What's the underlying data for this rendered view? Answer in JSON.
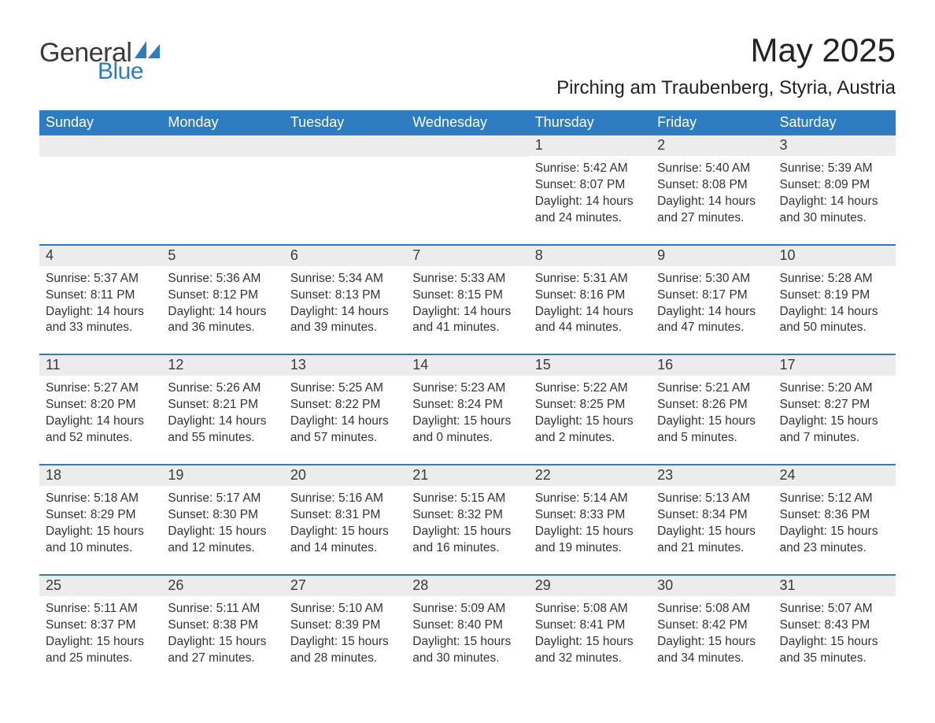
{
  "logo": {
    "text1": "General",
    "text2": "Blue",
    "accent_color": "#2d7bc0"
  },
  "title": "May 2025",
  "location": "Pirching am Traubenberg, Styria, Austria",
  "colors": {
    "header_bg": "#2d7bc0",
    "header_fg": "#ffffff",
    "daynum_bg": "#ececec",
    "text": "#333333",
    "rule": "#2d7bc0",
    "page_bg": "#ffffff"
  },
  "days_of_week": [
    "Sunday",
    "Monday",
    "Tuesday",
    "Wednesday",
    "Thursday",
    "Friday",
    "Saturday"
  ],
  "weeks": [
    [
      null,
      null,
      null,
      null,
      {
        "n": "1",
        "sunrise": "5:42 AM",
        "sunset": "8:07 PM",
        "dl": "14 hours and 24 minutes."
      },
      {
        "n": "2",
        "sunrise": "5:40 AM",
        "sunset": "8:08 PM",
        "dl": "14 hours and 27 minutes."
      },
      {
        "n": "3",
        "sunrise": "5:39 AM",
        "sunset": "8:09 PM",
        "dl": "14 hours and 30 minutes."
      }
    ],
    [
      {
        "n": "4",
        "sunrise": "5:37 AM",
        "sunset": "8:11 PM",
        "dl": "14 hours and 33 minutes."
      },
      {
        "n": "5",
        "sunrise": "5:36 AM",
        "sunset": "8:12 PM",
        "dl": "14 hours and 36 minutes."
      },
      {
        "n": "6",
        "sunrise": "5:34 AM",
        "sunset": "8:13 PM",
        "dl": "14 hours and 39 minutes."
      },
      {
        "n": "7",
        "sunrise": "5:33 AM",
        "sunset": "8:15 PM",
        "dl": "14 hours and 41 minutes."
      },
      {
        "n": "8",
        "sunrise": "5:31 AM",
        "sunset": "8:16 PM",
        "dl": "14 hours and 44 minutes."
      },
      {
        "n": "9",
        "sunrise": "5:30 AM",
        "sunset": "8:17 PM",
        "dl": "14 hours and 47 minutes."
      },
      {
        "n": "10",
        "sunrise": "5:28 AM",
        "sunset": "8:19 PM",
        "dl": "14 hours and 50 minutes."
      }
    ],
    [
      {
        "n": "11",
        "sunrise": "5:27 AM",
        "sunset": "8:20 PM",
        "dl": "14 hours and 52 minutes."
      },
      {
        "n": "12",
        "sunrise": "5:26 AM",
        "sunset": "8:21 PM",
        "dl": "14 hours and 55 minutes."
      },
      {
        "n": "13",
        "sunrise": "5:25 AM",
        "sunset": "8:22 PM",
        "dl": "14 hours and 57 minutes."
      },
      {
        "n": "14",
        "sunrise": "5:23 AM",
        "sunset": "8:24 PM",
        "dl": "15 hours and 0 minutes."
      },
      {
        "n": "15",
        "sunrise": "5:22 AM",
        "sunset": "8:25 PM",
        "dl": "15 hours and 2 minutes."
      },
      {
        "n": "16",
        "sunrise": "5:21 AM",
        "sunset": "8:26 PM",
        "dl": "15 hours and 5 minutes."
      },
      {
        "n": "17",
        "sunrise": "5:20 AM",
        "sunset": "8:27 PM",
        "dl": "15 hours and 7 minutes."
      }
    ],
    [
      {
        "n": "18",
        "sunrise": "5:18 AM",
        "sunset": "8:29 PM",
        "dl": "15 hours and 10 minutes."
      },
      {
        "n": "19",
        "sunrise": "5:17 AM",
        "sunset": "8:30 PM",
        "dl": "15 hours and 12 minutes."
      },
      {
        "n": "20",
        "sunrise": "5:16 AM",
        "sunset": "8:31 PM",
        "dl": "15 hours and 14 minutes."
      },
      {
        "n": "21",
        "sunrise": "5:15 AM",
        "sunset": "8:32 PM",
        "dl": "15 hours and 16 minutes."
      },
      {
        "n": "22",
        "sunrise": "5:14 AM",
        "sunset": "8:33 PM",
        "dl": "15 hours and 19 minutes."
      },
      {
        "n": "23",
        "sunrise": "5:13 AM",
        "sunset": "8:34 PM",
        "dl": "15 hours and 21 minutes."
      },
      {
        "n": "24",
        "sunrise": "5:12 AM",
        "sunset": "8:36 PM",
        "dl": "15 hours and 23 minutes."
      }
    ],
    [
      {
        "n": "25",
        "sunrise": "5:11 AM",
        "sunset": "8:37 PM",
        "dl": "15 hours and 25 minutes."
      },
      {
        "n": "26",
        "sunrise": "5:11 AM",
        "sunset": "8:38 PM",
        "dl": "15 hours and 27 minutes."
      },
      {
        "n": "27",
        "sunrise": "5:10 AM",
        "sunset": "8:39 PM",
        "dl": "15 hours and 28 minutes."
      },
      {
        "n": "28",
        "sunrise": "5:09 AM",
        "sunset": "8:40 PM",
        "dl": "15 hours and 30 minutes."
      },
      {
        "n": "29",
        "sunrise": "5:08 AM",
        "sunset": "8:41 PM",
        "dl": "15 hours and 32 minutes."
      },
      {
        "n": "30",
        "sunrise": "5:08 AM",
        "sunset": "8:42 PM",
        "dl": "15 hours and 34 minutes."
      },
      {
        "n": "31",
        "sunrise": "5:07 AM",
        "sunset": "8:43 PM",
        "dl": "15 hours and 35 minutes."
      }
    ]
  ],
  "labels": {
    "sunrise": "Sunrise:",
    "sunset": "Sunset:",
    "daylight": "Daylight:"
  }
}
